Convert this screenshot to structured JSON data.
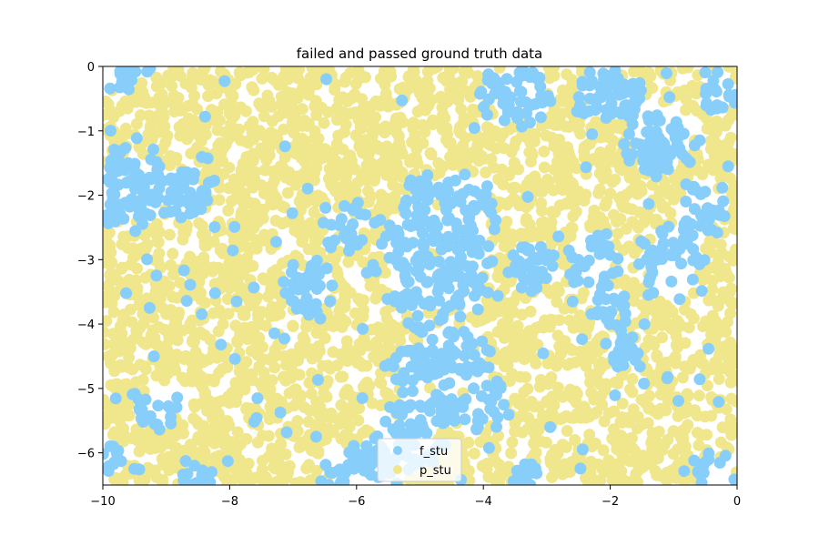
{
  "chart_data": {
    "type": "scatter",
    "title": "failed and passed ground truth data",
    "xlabel": "",
    "ylabel": "",
    "xlim": [
      -10,
      0
    ],
    "ylim": [
      -6.5,
      0
    ],
    "x_ticks": [
      -10,
      -8,
      -6,
      -4,
      -2,
      0
    ],
    "y_ticks": [
      0,
      -1,
      -2,
      -3,
      -4,
      -5,
      -6
    ],
    "x_tick_labels": [
      "−10",
      "−8",
      "−6",
      "−4",
      "−2",
      "0"
    ],
    "y_tick_labels": [
      "0",
      "−1",
      "−2",
      "−3",
      "−4",
      "−5",
      "−6"
    ],
    "grid": false,
    "legend_position": "bottom-center",
    "series": [
      {
        "name": "f_stu",
        "color": "#87CEFA",
        "regions": [
          {
            "cx": -9.6,
            "cy": -1.9,
            "r": 0.6
          },
          {
            "cx": -8.7,
            "cy": -2.0,
            "r": 0.45
          },
          {
            "cx": -9.6,
            "cy": -0.1,
            "r": 0.35
          },
          {
            "cx": -4.8,
            "cy": -3.0,
            "r": 0.9
          },
          {
            "cx": -4.4,
            "cy": -2.3,
            "r": 0.55
          },
          {
            "cx": -4.9,
            "cy": -2.0,
            "r": 0.3
          },
          {
            "cx": -6.2,
            "cy": -2.5,
            "r": 0.35
          },
          {
            "cx": -3.5,
            "cy": -0.4,
            "r": 0.5
          },
          {
            "cx": -2.0,
            "cy": -0.4,
            "r": 0.5
          },
          {
            "cx": -1.2,
            "cy": -1.2,
            "r": 0.5
          },
          {
            "cx": -0.3,
            "cy": -0.4,
            "r": 0.3
          },
          {
            "cx": -0.5,
            "cy": -2.2,
            "r": 0.4
          },
          {
            "cx": -1.0,
            "cy": -3.0,
            "r": 0.55
          },
          {
            "cx": -2.3,
            "cy": -3.0,
            "r": 0.4
          },
          {
            "cx": -3.2,
            "cy": -3.1,
            "r": 0.35
          },
          {
            "cx": -2.0,
            "cy": -3.7,
            "r": 0.3
          },
          {
            "cx": -6.7,
            "cy": -3.4,
            "r": 0.4
          },
          {
            "cx": -4.7,
            "cy": -4.8,
            "r": 0.75
          },
          {
            "cx": -4.1,
            "cy": -5.2,
            "r": 0.5
          },
          {
            "cx": -9.2,
            "cy": -5.3,
            "r": 0.35
          },
          {
            "cx": -5.2,
            "cy": -5.8,
            "r": 0.5
          },
          {
            "cx": -6.0,
            "cy": -6.4,
            "r": 0.55
          },
          {
            "cx": -8.5,
            "cy": -6.45,
            "r": 0.3
          },
          {
            "cx": -3.3,
            "cy": -6.4,
            "r": 0.3
          },
          {
            "cx": -0.3,
            "cy": -6.4,
            "r": 0.35
          },
          {
            "cx": -1.8,
            "cy": -4.4,
            "r": 0.25
          },
          {
            "cx": -9.9,
            "cy": -6.0,
            "r": 0.25
          }
        ]
      },
      {
        "name": "p_stu",
        "color": "#F0E68C",
        "background": true
      }
    ]
  }
}
